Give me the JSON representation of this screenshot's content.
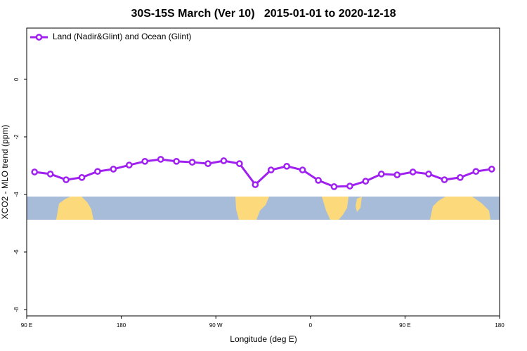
{
  "chart_data": {
    "type": "line",
    "title": "30S-15S March (Ver 10)   2015-01-01 to 2020-12-18",
    "x_label": "Longitude (deg E)",
    "y_label": "XCO2 - MLO trend (ppm)",
    "legend_position": "top-left",
    "x": [
      97.5,
      112.5,
      127.5,
      142.5,
      157.5,
      172.5,
      187.5,
      202.5,
      217.5,
      232.5,
      247.5,
      262.5,
      277.5,
      292.5,
      307.5,
      322.5,
      337.5,
      352.5,
      367.5,
      382.5,
      397.5,
      412.5,
      427.5,
      442.5,
      457.5,
      472.5,
      487.5,
      502.5,
      517.5,
      532.5
    ],
    "series": [
      {
        "name": "Land (Nadir&Glint) and Ocean (Glint)",
        "color": "#a020f0",
        "values": [
          -3.22,
          -3.29,
          -3.49,
          -3.41,
          -3.2,
          -3.12,
          -2.98,
          -2.85,
          -2.78,
          -2.85,
          -2.88,
          -2.93,
          -2.83,
          -2.93,
          -3.66,
          -3.15,
          -3.02,
          -3.15,
          -3.51,
          -3.73,
          -3.71,
          -3.54,
          -3.29,
          -3.32,
          -3.22,
          -3.29,
          -3.49,
          -3.41,
          -3.2,
          -3.12
        ]
      }
    ],
    "xlim": [
      90,
      540
    ],
    "xticks": [
      {
        "value": 90,
        "label": "90 E"
      },
      180,
      {
        "value": 270,
        "label": "90 W"
      },
      {
        "value": 360,
        "label": "0"
      },
      {
        "value": 450,
        "label": "90 E"
      },
      {
        "value": 540,
        "label": "180"
      }
    ],
    "ylim": [
      -8.22,
      1.78
    ],
    "yticks": [
      0,
      -2,
      -4,
      -6,
      -8
    ]
  }
}
